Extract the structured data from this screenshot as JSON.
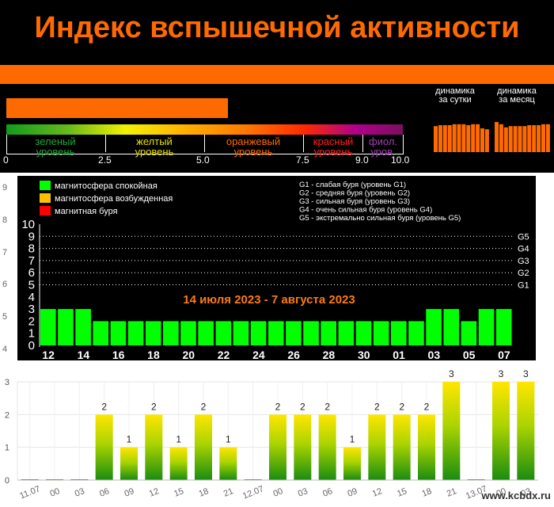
{
  "header": {
    "title": "Индекс вспышечной активности",
    "flare_level": 5.6,
    "scale_ticks": [
      "0",
      "2.5",
      "5.0",
      "7.5",
      "9.0",
      "10.0"
    ],
    "zones": [
      {
        "line1": "зеленый",
        "line2": "уровень",
        "color": "#1fa83a"
      },
      {
        "line1": "желтый",
        "line2": "уровень",
        "color": "#e8e000"
      },
      {
        "line1": "оранжевый",
        "line2": "уровень",
        "color": "#ff6a00"
      },
      {
        "line1": "красный",
        "line2": "уровень",
        "color": "#ff2020"
      },
      {
        "line1": "фиол.",
        "line2": "уров.",
        "color": "#a040b0"
      }
    ],
    "daily_label_1": "динамика",
    "daily_label_2": "за сутки",
    "monthly_label_1": "динамика",
    "monthly_label_2": "за месяц",
    "daily_bars": [
      0.82,
      0.85,
      0.85,
      0.85,
      0.88,
      0.88,
      0.88,
      0.85,
      0.88,
      0.88,
      0.75,
      0.72
    ],
    "monthly_bars": [
      0.95,
      0.88,
      0.78,
      0.82,
      0.82,
      0.82,
      0.82,
      0.85,
      0.85,
      0.85,
      0.88,
      0.88
    ]
  },
  "chart_data": [
    {
      "type": "bar",
      "title": "14 июля 2023 - 7 августа 2023",
      "ylim": [
        0,
        10
      ],
      "y_ticks": [
        "0",
        "1",
        "2",
        "3",
        "4",
        "5",
        "6",
        "7",
        "8",
        "9",
        "10"
      ],
      "right_ticks": [
        {
          "label": "G5",
          "value": 9
        },
        {
          "label": "G4",
          "value": 8
        },
        {
          "label": "G3",
          "value": 7
        },
        {
          "label": "G2",
          "value": 6
        },
        {
          "label": "G1",
          "value": 5
        }
      ],
      "x_tick_labels": [
        "12",
        "14",
        "16",
        "18",
        "20",
        "22",
        "24",
        "26",
        "28",
        "30",
        "01",
        "03",
        "05",
        "07"
      ],
      "values": [
        3,
        3,
        3,
        2,
        2,
        2,
        2,
        2,
        2,
        2,
        2,
        2,
        2,
        2,
        2,
        2,
        2,
        2,
        2,
        2,
        2,
        2,
        3,
        3,
        2,
        3,
        3
      ],
      "legend": [
        {
          "label": "магнитосфера спокойная",
          "color": "#00ff00"
        },
        {
          "label": "магнитосфера возбужденная",
          "color": "#ffc000"
        },
        {
          "label": "магнитная буря",
          "color": "#ff0000"
        }
      ],
      "storm_legend": [
        "G1 - слабая буря (уровень G1)",
        "G2 - средняя буря (уровень G2)",
        "G3 - сильная буря (уровень G3)",
        "G4 - очень сильная буря (уровень G4)",
        "G5 - экстремально сильная буря (уровень G5)"
      ],
      "bar_color": "#00ff00"
    },
    {
      "type": "bar",
      "title": "",
      "ylim": [
        0,
        3
      ],
      "y_ticks": [
        "0",
        "1",
        "2",
        "3"
      ],
      "categories": [
        "11.07",
        "00",
        "03",
        "06",
        "09",
        "12",
        "15",
        "18",
        "21",
        "12.07",
        "00",
        "03",
        "06",
        "09",
        "12",
        "15",
        "18",
        "21",
        "13.07",
        "00",
        "03"
      ],
      "values": [
        0,
        0,
        0,
        2,
        1,
        2,
        1,
        2,
        1,
        0,
        2,
        2,
        2,
        1,
        2,
        2,
        2,
        3,
        0,
        3,
        3
      ]
    }
  ],
  "left_axis": {
    "ticks": [
      "4",
      "5",
      "6",
      "7",
      "8",
      "9"
    ]
  },
  "watermark": "www.kcbdx.ru"
}
